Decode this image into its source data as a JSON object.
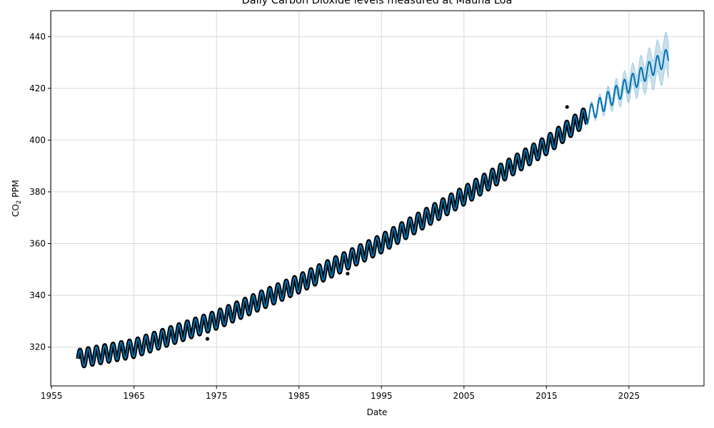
{
  "chart_data": {
    "type": "line",
    "title": "Daily Carbon Dioxide levels measured at Mauna Loa",
    "xlabel": "Date",
    "ylabel_main": "CO",
    "ylabel_sub": "2",
    "ylabel_rest": " PPM",
    "xlim": [
      1954.9,
      2034.1
    ],
    "ylim": [
      305,
      450
    ],
    "xticks": [
      1955,
      1965,
      1975,
      1985,
      1995,
      2005,
      2015,
      2025
    ],
    "xtick_labels": [
      "1955",
      "1965",
      "1975",
      "1985",
      "1995",
      "2005",
      "2015",
      "2025"
    ],
    "yticks": [
      320,
      340,
      360,
      380,
      400,
      420,
      440
    ],
    "ytick_labels": [
      "320",
      "340",
      "360",
      "380",
      "400",
      "420",
      "440"
    ],
    "grid": true,
    "observed_range": [
      1958.2,
      2019.9
    ],
    "forecast_range": [
      1958.2,
      2029.8
    ],
    "forecast_trend_points": {
      "x": [
        1958.2,
        1965,
        1975,
        1985,
        1995,
        2005,
        2015,
        2019.9,
        2025,
        2029.8
      ],
      "y": [
        315.5,
        319.5,
        330.5,
        344.5,
        360.0,
        378.5,
        398.0,
        409.5,
        421.5,
        432.5
      ]
    },
    "seasonal_amplitude": 3.2,
    "uncertainty_start": 2019.9,
    "uncertainty_halfwidth_end": 7,
    "outliers": [
      {
        "x": 1973.9,
        "y": 323.2
      },
      {
        "x": 1990.9,
        "y": 348.4
      },
      {
        "x": 2017.5,
        "y": 412.8
      }
    ],
    "colors": {
      "observed": "#000000",
      "forecast": "#0072b2",
      "uncertainty": "#0072b2",
      "grid": "#d9d9d9"
    }
  }
}
